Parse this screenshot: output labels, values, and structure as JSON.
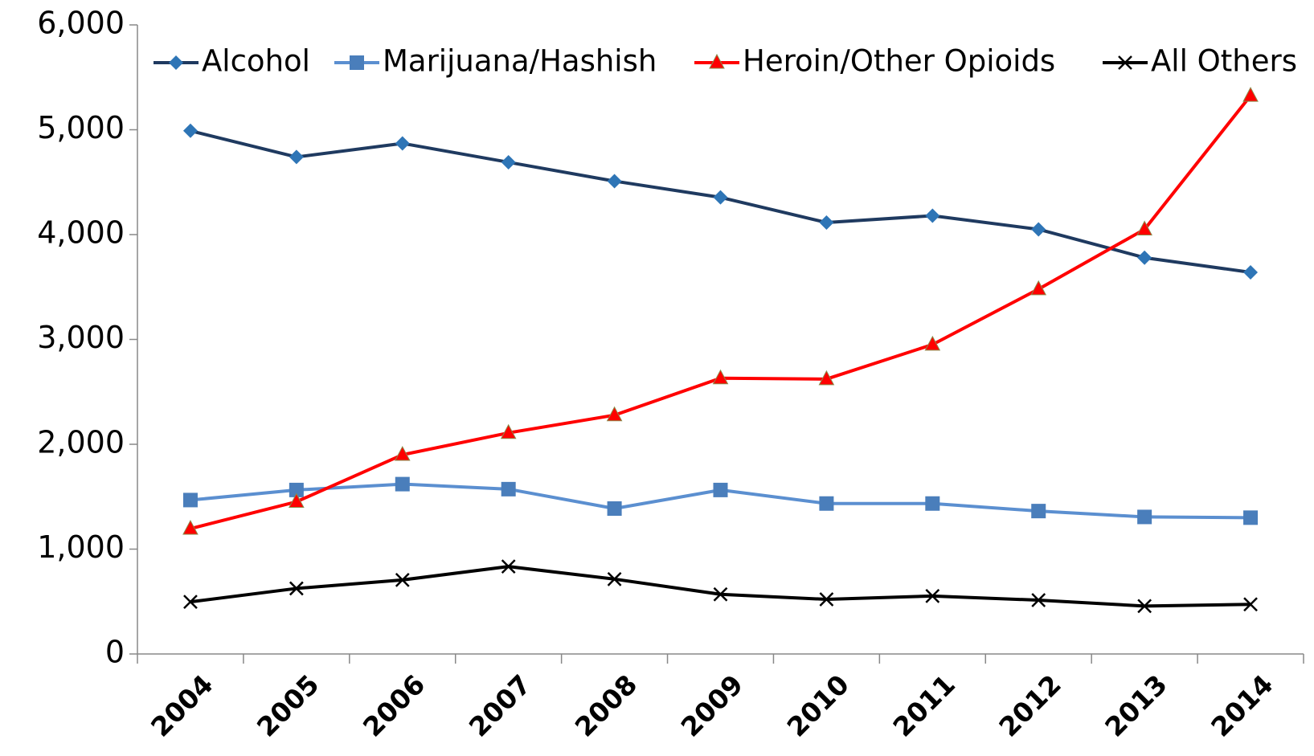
{
  "chart_data": {
    "type": "line",
    "categories": [
      "2004",
      "2005",
      "2006",
      "2007",
      "2008",
      "2009",
      "2010",
      "2011",
      "2012",
      "2013",
      "2014"
    ],
    "series": [
      {
        "name": "Alcohol",
        "color": "#1f3a60",
        "marker_color": "#2e75b6",
        "marker": "diamond",
        "values": [
          4990,
          4740,
          4870,
          4690,
          4510,
          4355,
          4115,
          4180,
          4050,
          3780,
          3640
        ]
      },
      {
        "name": "Marijuana/Hashish",
        "color": "#5b8fd0",
        "marker_color": "#4a7ebb",
        "marker": "square",
        "values": [
          1468,
          1564,
          1620,
          1572,
          1387,
          1564,
          1435,
          1435,
          1363,
          1307,
          1300
        ]
      },
      {
        "name": "Heroin/Other Opioids",
        "color": "#ff0000",
        "marker_color": "#ff0000",
        "marker": "triangle",
        "values": [
          1195,
          1452,
          1900,
          2109,
          2278,
          2630,
          2622,
          2951,
          3480,
          4050,
          5325
        ]
      },
      {
        "name": "All Others",
        "color": "#000000",
        "marker_color": "#000000",
        "marker": "x",
        "values": [
          497,
          625,
          706,
          834,
          714,
          569,
          521,
          553,
          513,
          457,
          473
        ]
      }
    ],
    "ylim": [
      0,
      6000
    ],
    "yticks": [
      0,
      {
        "value": 1000,
        "label": "1,000"
      },
      {
        "value": 2000,
        "label": "2,000"
      },
      {
        "value": 3000,
        "label": "3,000"
      },
      {
        "value": 4000,
        "label": "4,000"
      },
      {
        "value": 5000,
        "label": "5,000"
      },
      {
        "value": 6000,
        "label": "6,000"
      }
    ],
    "legend": "top"
  }
}
